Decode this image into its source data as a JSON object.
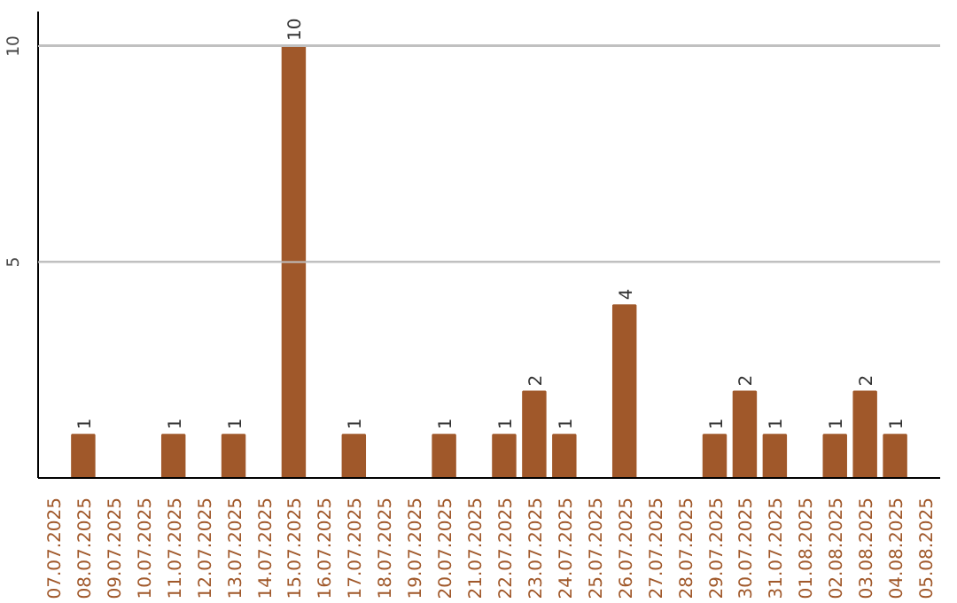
{
  "chart_data": {
    "type": "bar",
    "categories": [
      "07.07.2025",
      "08.07.2025",
      "09.07.2025",
      "10.07.2025",
      "11.07.2025",
      "12.07.2025",
      "13.07.2025",
      "14.07.2025",
      "15.07.2025",
      "16.07.2025",
      "17.07.2025",
      "18.07.2025",
      "19.07.2025",
      "20.07.2025",
      "21.07.2025",
      "22.07.2025",
      "23.07.2025",
      "24.07.2025",
      "25.07.2025",
      "26.07.2025",
      "27.07.2025",
      "28.07.2025",
      "29.07.2025",
      "30.07.2025",
      "31.07.2025",
      "01.08.2025",
      "02.08.2025",
      "03.08.2025",
      "04.08.2025",
      "05.08.2025"
    ],
    "values": [
      0,
      1,
      0,
      0,
      1,
      0,
      1,
      0,
      10,
      0,
      1,
      0,
      0,
      1,
      0,
      1,
      2,
      1,
      0,
      4,
      0,
      0,
      1,
      2,
      1,
      0,
      1,
      2,
      1,
      0
    ],
    "value_labels": [
      null,
      "1",
      null,
      null,
      "1",
      null,
      "1",
      null,
      "10",
      null,
      "1",
      null,
      null,
      "1",
      null,
      "1",
      "2",
      "1",
      null,
      "4",
      null,
      null,
      "1",
      "2",
      "1",
      null,
      "1",
      "2",
      "1",
      null
    ],
    "color": "#a0582a",
    "ylim": [
      0,
      10.8
    ],
    "yticks": [
      5,
      10
    ],
    "grid": "y"
  }
}
